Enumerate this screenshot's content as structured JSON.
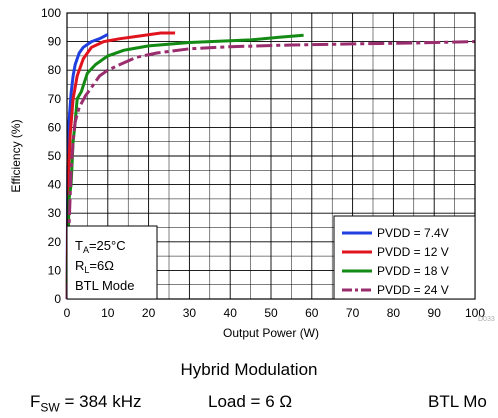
{
  "chart_data": {
    "type": "line",
    "xlabel": "Output Power (W)",
    "ylabel": "Efficiency (%)",
    "xlim": [
      0,
      100
    ],
    "ylim": [
      0,
      100
    ],
    "x_ticks": [
      "0",
      "10",
      "20",
      "30",
      "40",
      "50",
      "60",
      "70",
      "80",
      "90",
      "100"
    ],
    "y_ticks": [
      "0",
      "10",
      "20",
      "30",
      "40",
      "50",
      "60",
      "70",
      "80",
      "90",
      "100"
    ],
    "grid": true,
    "legend_position": "bottom-right",
    "watermark": "D033",
    "annotation": {
      "ta": "T",
      "ta_sub": "A",
      "ta_val": "=25°C",
      "rl": "R",
      "rl_sub": "L",
      "rl_val": "=6Ω",
      "mode": "BTL Mode"
    },
    "series": [
      {
        "name": "PVDD = 7.4V",
        "color": "#1f3fe0",
        "dash": "solid",
        "points": [
          [
            0,
            0
          ],
          [
            0.2,
            45
          ],
          [
            0.5,
            62
          ],
          [
            1,
            72
          ],
          [
            1.5,
            78
          ],
          [
            2,
            82
          ],
          [
            3,
            86
          ],
          [
            4,
            88
          ],
          [
            6,
            90
          ],
          [
            8,
            91
          ],
          [
            10,
            92.5
          ]
        ]
      },
      {
        "name": "PVDD = 12 V",
        "color": "#e0141e",
        "dash": "solid",
        "points": [
          [
            0,
            0
          ],
          [
            0.3,
            42
          ],
          [
            0.8,
            58
          ],
          [
            1.5,
            70
          ],
          [
            2.5,
            78
          ],
          [
            4,
            84
          ],
          [
            6,
            88
          ],
          [
            9,
            90
          ],
          [
            13,
            91
          ],
          [
            18,
            92
          ],
          [
            23,
            93
          ],
          [
            26.5,
            93
          ]
        ]
      },
      {
        "name": "PVDD = 18 V",
        "color": "#138a13",
        "dash": "solid",
        "points": [
          [
            0,
            0
          ],
          [
            0.5,
            35
          ],
          [
            1,
            40
          ],
          [
            1.5,
            55
          ],
          [
            2,
            62
          ],
          [
            2.5,
            70
          ],
          [
            3.5,
            72.5
          ],
          [
            5,
            79
          ],
          [
            7,
            82
          ],
          [
            10,
            85
          ],
          [
            14,
            87
          ],
          [
            20,
            88.5
          ],
          [
            30,
            89.7
          ],
          [
            45,
            90.6
          ],
          [
            52,
            91.5
          ],
          [
            58,
            92.2
          ]
        ]
      },
      {
        "name": "PVDD = 24 V",
        "color": "#9a2d6e",
        "dash": "dashdot",
        "points": [
          [
            0,
            0
          ],
          [
            0.5,
            25
          ],
          [
            1,
            45
          ],
          [
            1.5,
            55
          ],
          [
            2,
            62
          ],
          [
            3,
            67
          ],
          [
            4.5,
            71
          ],
          [
            6,
            74
          ],
          [
            8,
            78
          ],
          [
            10,
            80
          ],
          [
            13,
            82
          ],
          [
            17,
            84.5
          ],
          [
            22,
            86
          ],
          [
            30,
            87.5
          ],
          [
            40,
            88.2
          ],
          [
            55,
            88.8
          ],
          [
            70,
            89.2
          ],
          [
            85,
            89.5
          ],
          [
            100,
            90
          ]
        ]
      }
    ]
  },
  "caption": {
    "title": "Hybrid Modulation",
    "fsw_label": "F",
    "fsw_sub": "SW",
    "fsw_value": " = 384 kHz",
    "load": "Load = 6 Ω",
    "mode": "BTL Mo"
  }
}
